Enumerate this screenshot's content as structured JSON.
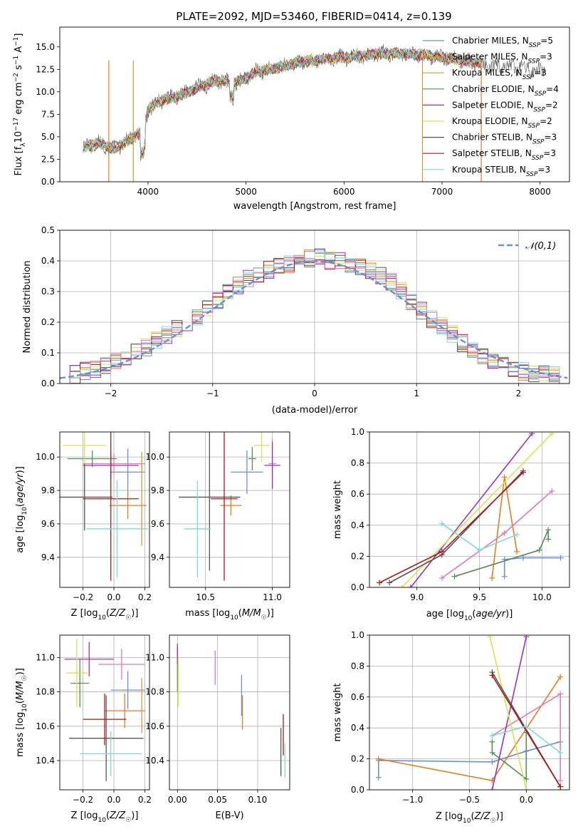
{
  "title": "PLATE=2092, MJD=53460, FIBERID=0414, z=0.139",
  "model_colors": [
    "#6a8fd8",
    "#e87a1e",
    "#c89b3c",
    "#5a8a5a",
    "#9b30c0",
    "#d4e64a",
    "#555555",
    "#b01818",
    "#7fd9d9",
    "#e07ab8"
  ],
  "chart_data": [
    {
      "id": "spectrum",
      "type": "line",
      "xlabel": "wavelength [Angstrom, rest frame]",
      "ylabel": "Flux [f_λ 10^-17 erg cm^-2 s^-1 A^-1]",
      "xlim": [
        3100,
        8300
      ],
      "ylim": [
        0,
        17.2
      ],
      "xticks": [
        4000,
        5000,
        6000,
        7000,
        8000
      ],
      "yticks": [
        0.0,
        2.5,
        5.0,
        7.5,
        10.0,
        12.5,
        15.0
      ],
      "legend_position": "upper right",
      "data_envelope": {
        "x": [
          3350,
          3500,
          3650,
          3800,
          3950,
          4000,
          4100,
          4300,
          4500,
          4700,
          4900,
          5100,
          5300,
          5500,
          5700,
          5900,
          6100,
          6300,
          6500,
          6700,
          6900,
          7100,
          7300,
          7500,
          7700,
          7900,
          8050
        ],
        "y": [
          3.9,
          4.3,
          3.6,
          4.6,
          5.6,
          8.0,
          8.9,
          9.5,
          10.4,
          11.3,
          11.0,
          12.2,
          12.6,
          13.2,
          13.5,
          13.8,
          13.9,
          14.2,
          14.3,
          14.2,
          14.0,
          13.7,
          13.3,
          12.8,
          12.9,
          12.5,
          12.4
        ]
      },
      "series": [
        {
          "name": "Chabrier MILES, N_SSP=5"
        },
        {
          "name": "Salpeter MILES, N_SSP=3"
        },
        {
          "name": "Kroupa MILES, N_SSP=3"
        },
        {
          "name": "Chabrier ELODIE, N_SSP=4"
        },
        {
          "name": "Salpeter ELODIE, N_SSP=2"
        },
        {
          "name": "Kroupa ELODIE, N_SSP=2"
        },
        {
          "name": "Chabrier STELIB, N_SSP=3"
        },
        {
          "name": "Salpeter STELIB, N_SSP=3"
        },
        {
          "name": "Kroupa STELIB, N_SSP=3"
        }
      ]
    },
    {
      "id": "residuals",
      "type": "step",
      "xlabel": "(data-model)/error",
      "ylabel": "Normed distribution",
      "xlim": [
        -2.5,
        2.5
      ],
      "ylim": [
        0,
        0.5
      ],
      "xticks": [
        -2,
        -1,
        0,
        1,
        2
      ],
      "yticks": [
        0.0,
        0.1,
        0.2,
        0.3,
        0.4,
        0.5
      ],
      "grid": true,
      "reference_curve": {
        "name": "𝒩(0,1)",
        "type": "gaussian",
        "mu": 0,
        "sigma": 1
      },
      "bins": {
        "start": -2.5,
        "width": 0.1
      },
      "histogram": [
        0.025,
        0.03,
        0.04,
        0.05,
        0.06,
        0.07,
        0.08,
        0.1,
        0.12,
        0.14,
        0.16,
        0.18,
        0.2,
        0.22,
        0.25,
        0.27,
        0.3,
        0.32,
        0.34,
        0.36,
        0.37,
        0.38,
        0.39,
        0.4,
        0.41,
        0.41,
        0.4,
        0.4,
        0.39,
        0.38,
        0.37,
        0.35,
        0.33,
        0.3,
        0.27,
        0.24,
        0.21,
        0.19,
        0.16,
        0.13,
        0.11,
        0.09,
        0.07,
        0.06,
        0.05,
        0.04,
        0.035,
        0.03,
        0.025,
        0.02
      ]
    },
    {
      "id": "age-vs-Z",
      "type": "errorbar",
      "xlabel": "Z [log10(Z/Z☉)]",
      "ylabel": "age [log10(age/yr)]",
      "xlim": [
        -0.35,
        0.23
      ],
      "ylim": [
        9.22,
        10.15
      ],
      "xticks": [
        -0.2,
        0.0,
        0.2
      ],
      "yticks": [
        9.4,
        9.6,
        9.8,
        10.0
      ],
      "grid": true,
      "points": [
        {
          "model": 0,
          "x": 0.09,
          "y": 9.91,
          "xerr": 0.11,
          "yerr": 0.14
        },
        {
          "model": 1,
          "x": 0.09,
          "y": 9.71,
          "xerr": 0.12,
          "yerr": 0.08
        },
        {
          "model": 9,
          "x": 0.0,
          "y": 9.96,
          "xerr": 0.2,
          "yerr": 0.06
        },
        {
          "model": 3,
          "x": -0.14,
          "y": 9.99,
          "xerr": 0.16,
          "yerr": 0.05
        },
        {
          "model": 4,
          "x": -0.02,
          "y": 9.95,
          "xerr": 0.18,
          "yerr": 0.08
        },
        {
          "model": 5,
          "x": -0.19,
          "y": 10.07,
          "xerr": 0.14,
          "yerr": 0.12
        },
        {
          "model": 6,
          "x": -0.19,
          "y": 9.76,
          "xerr": 0.18,
          "yerr": 0.2
        },
        {
          "model": 7,
          "x": -0.02,
          "y": 9.75,
          "xerr": 0.18,
          "yerr": 0.49
        },
        {
          "model": 8,
          "x": 0.02,
          "y": 9.57,
          "xerr": 0.2,
          "yerr": 0.29
        },
        {
          "model": 2,
          "x": 0.18,
          "y": 9.75,
          "xerr": 0.0,
          "yerr": 0.28
        }
      ]
    },
    {
      "id": "age-vs-mass",
      "type": "errorbar",
      "xlabel": "mass [log10(M/M☉)]",
      "ylabel": "",
      "xlim": [
        10.23,
        11.13
      ],
      "ylim": [
        9.22,
        10.15
      ],
      "xticks": [
        10.5,
        11.0
      ],
      "yticks": [
        9.4,
        9.6,
        9.8,
        10.0
      ],
      "grid": true,
      "points": [
        {
          "model": 0,
          "x": 10.81,
          "y": 9.91,
          "xerr": 0.12,
          "yerr": 0.13
        },
        {
          "model": 1,
          "x": 10.69,
          "y": 9.71,
          "xerr": 0.08,
          "yerr": 0.06
        },
        {
          "model": 9,
          "x": 11.0,
          "y": 9.96,
          "xerr": 0.03,
          "yerr": 0.15
        },
        {
          "model": 3,
          "x": 10.85,
          "y": 9.99,
          "xerr": 0.03,
          "yerr": 0.07
        },
        {
          "model": 4,
          "x": 11.0,
          "y": 9.95,
          "xerr": 0.06,
          "yerr": 0.14
        },
        {
          "model": 5,
          "x": 10.92,
          "y": 10.07,
          "xerr": 0.06,
          "yerr": 0.1
        },
        {
          "model": 6,
          "x": 10.53,
          "y": 9.76,
          "xerr": 0.23,
          "yerr": 0.44
        },
        {
          "model": 7,
          "x": 10.64,
          "y": 9.75,
          "xerr": 0.1,
          "yerr": 0.49
        },
        {
          "model": 8,
          "x": 10.44,
          "y": 9.57,
          "xerr": 0.1,
          "yerr": 0.29
        },
        {
          "model": 2,
          "x": 10.52,
          "y": 9.76,
          "xerr": 0.0,
          "yerr": 0.0
        }
      ]
    },
    {
      "id": "mass-weight-vs-age",
      "type": "line",
      "xlabel": "age [log10(age/yr)]",
      "ylabel": "mass weight",
      "xlim": [
        8.62,
        10.22
      ],
      "ylim": [
        0,
        1
      ],
      "xticks": [
        9.0,
        9.5,
        10.0
      ],
      "yticks": [
        0.0,
        0.2,
        0.4,
        0.6,
        0.8,
        1.0
      ],
      "grid": true,
      "series": [
        {
          "model": 0,
          "x": [
            9.7,
            9.7,
            9.85,
            10.15
          ],
          "y": [
            0.07,
            0.18,
            0.19,
            0.19
          ]
        },
        {
          "model": 1,
          "x": [
            9.6,
            9.7,
            9.8
          ],
          "y": [
            0.06,
            0.71,
            0.23
          ]
        },
        {
          "model": 9,
          "x": [
            9.2,
            9.7,
            10.08
          ],
          "y": [
            0.06,
            0.35,
            0.62
          ]
        },
        {
          "model": 3,
          "x": [
            9.3,
            9.98,
            10.05,
            10.05
          ],
          "y": [
            0.07,
            0.24,
            0.37,
            0.31
          ]
        },
        {
          "model": 4,
          "x": [
            8.95,
            9.92
          ],
          "y": [
            0.0,
            0.99
          ]
        },
        {
          "model": 5,
          "x": [
            8.88,
            10.08
          ],
          "y": [
            0.0,
            0.99
          ]
        },
        {
          "model": 6,
          "x": [
            8.78,
            9.2,
            9.85
          ],
          "y": [
            0.03,
            0.21,
            0.75
          ]
        },
        {
          "model": 7,
          "x": [
            8.7,
            9.2,
            9.85
          ],
          "y": [
            0.03,
            0.23,
            0.74
          ]
        },
        {
          "model": 8,
          "x": [
            9.2,
            9.5,
            9.8
          ],
          "y": [
            0.41,
            0.24,
            0.34
          ]
        }
      ]
    },
    {
      "id": "mass-vs-Z",
      "type": "errorbar",
      "xlabel": "Z [log10(Z/Z☉)]",
      "ylabel": "mass [log10(M/M☉)]",
      "xlim": [
        -0.35,
        0.23
      ],
      "ylim": [
        10.23,
        11.13
      ],
      "xticks": [
        -0.2,
        0.0,
        0.2
      ],
      "yticks": [
        10.4,
        10.6,
        10.8,
        11.0
      ],
      "grid": true,
      "points": [
        {
          "model": 0,
          "x": 0.09,
          "y": 10.81,
          "xerr": 0.11,
          "yerr": 0.11
        },
        {
          "model": 1,
          "x": 0.07,
          "y": 10.69,
          "xerr": 0.13,
          "yerr": 0.1
        },
        {
          "model": 9,
          "x": 0.05,
          "y": 10.96,
          "xerr": 0.15,
          "yerr": 0.09
        },
        {
          "model": 3,
          "x": -0.22,
          "y": 10.85,
          "xerr": 0.06,
          "yerr": 0.14
        },
        {
          "model": 4,
          "x": -0.16,
          "y": 10.99,
          "xerr": 0.16,
          "yerr": 0.1
        },
        {
          "model": 5,
          "x": -0.24,
          "y": 10.91,
          "xerr": 0.07,
          "yerr": 0.2
        },
        {
          "model": 6,
          "x": -0.05,
          "y": 10.53,
          "xerr": 0.24,
          "yerr": 0.25
        },
        {
          "model": 7,
          "x": -0.06,
          "y": 10.64,
          "xerr": 0.14,
          "yerr": 0.15
        },
        {
          "model": 8,
          "x": -0.02,
          "y": 10.44,
          "xerr": 0.2,
          "yerr": 0.13
        },
        {
          "model": 2,
          "x": 0.18,
          "y": 10.72,
          "xerr": 0.0,
          "yerr": 0.16
        }
      ]
    },
    {
      "id": "mass-vs-EBV",
      "type": "errorbar",
      "xlabel": "E(B-V)",
      "ylabel": "",
      "xlim": [
        -0.01,
        0.14
      ],
      "ylim": [
        10.23,
        11.13
      ],
      "xticks": [
        0.0,
        0.05,
        0.1
      ],
      "yticks": [
        10.4,
        10.6,
        10.8,
        11.0
      ],
      "grid": true,
      "points": [
        {
          "model": 0,
          "x": 0.08,
          "y": 10.78,
          "xerr": 0,
          "yerr": 0.12
        },
        {
          "model": 1,
          "x": 0.081,
          "y": 10.68,
          "xerr": 0,
          "yerr": 0.1
        },
        {
          "model": 9,
          "x": 0.047,
          "y": 10.94,
          "xerr": 0,
          "yerr": 0.1
        },
        {
          "model": 3,
          "x": 0.0,
          "y": 10.93,
          "xerr": 0,
          "yerr": 0.13
        },
        {
          "model": 4,
          "x": 0.0,
          "y": 11.02,
          "xerr": 0,
          "yerr": 0.06
        },
        {
          "model": 5,
          "x": 0.001,
          "y": 10.86,
          "xerr": 0,
          "yerr": 0.15
        },
        {
          "model": 6,
          "x": 0.129,
          "y": 10.45,
          "xerr": 0,
          "yerr": 0.14
        },
        {
          "model": 7,
          "x": 0.132,
          "y": 10.55,
          "xerr": 0,
          "yerr": 0.12
        },
        {
          "model": 8,
          "x": 0.134,
          "y": 10.4,
          "xerr": 0,
          "yerr": 0.1
        }
      ]
    },
    {
      "id": "mass-weight-vs-Z",
      "type": "line",
      "xlabel": "Z [log10(Z/Z☉)]",
      "ylabel": "mass weight",
      "xlim": [
        -1.38,
        0.38
      ],
      "ylim": [
        0,
        1
      ],
      "xticks": [
        -1.0,
        -0.5,
        0.0
      ],
      "yticks": [
        0.0,
        0.2,
        0.4,
        0.6,
        0.8,
        1.0
      ],
      "grid": true,
      "series": [
        {
          "model": 0,
          "x": [
            -1.3,
            -1.3,
            -0.3,
            0.0,
            0.3
          ],
          "y": [
            0.08,
            0.19,
            0.18,
            0.25,
            0.31
          ]
        },
        {
          "model": 1,
          "x": [
            -1.3,
            -0.3,
            0.3
          ],
          "y": [
            0.2,
            0.06,
            0.73
          ]
        },
        {
          "model": 9,
          "x": [
            -0.3,
            0.3,
            0.3
          ],
          "y": [
            0.35,
            0.62,
            0.06
          ]
        },
        {
          "model": 3,
          "x": [
            -0.3,
            -0.3,
            0.0,
            0.0
          ],
          "y": [
            0.31,
            0.24,
            0.07,
            0.37
          ]
        },
        {
          "model": 4,
          "x": [
            -0.3,
            0.0
          ],
          "y": [
            0.0,
            0.99
          ]
        },
        {
          "model": 5,
          "x": [
            -0.32,
            0.0
          ],
          "y": [
            0.99,
            0.0
          ]
        },
        {
          "model": 6,
          "x": [
            -0.3,
            0.3
          ],
          "y": [
            0.76,
            0.02
          ]
        },
        {
          "model": 7,
          "x": [
            -0.3,
            0.3
          ],
          "y": [
            0.74,
            0.02
          ]
        },
        {
          "model": 8,
          "x": [
            -0.3,
            0.0,
            0.3
          ],
          "y": [
            0.35,
            0.41,
            0.24
          ]
        }
      ]
    }
  ]
}
